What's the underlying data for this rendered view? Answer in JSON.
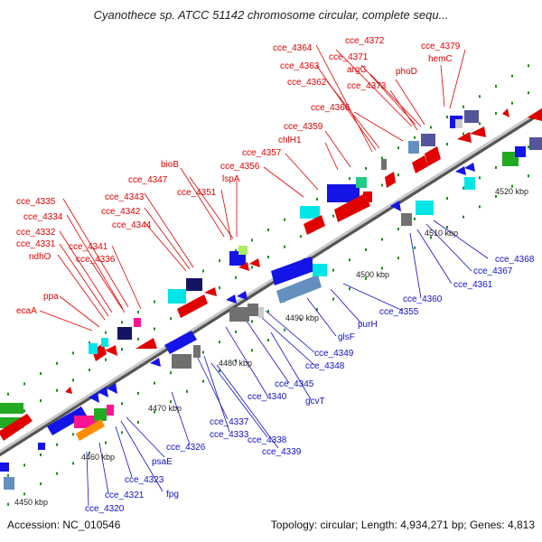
{
  "title": "Cyanothece sp. ATCC 51142 chromosome circular, complete sequ...",
  "footer": {
    "accession": "Accession: NC_010546",
    "summary": "Topology: circular; Length: 4,934,271 bp; Genes: 4,813"
  },
  "colors": {
    "forward_label": "#e00000",
    "reverse_label": "#1010c8",
    "backbone": "#9a9a9a",
    "tick_dot": "#1e8c1e",
    "gene_blue": "#1414e6",
    "gene_red": "#e00000",
    "gene_cyan": "#00e6e6",
    "gene_navy": "#141464",
    "gene_gray": "#707070",
    "gene_steel": "#6490c0",
    "gene_magenta": "#ff1493",
    "gene_green": "#22aa22",
    "gene_orange": "#ff8c00",
    "gene_lightgreen": "#aaee66",
    "gene_purple": "#555599"
  },
  "scale_ticks": [
    "4450 kbp",
    "4460 kbp",
    "4470 kbp",
    "4480 kbp",
    "4490 kbp",
    "4500 kbp",
    "4510 kbp",
    "4520 kbp"
  ],
  "forward_labels": [
    "cce_4372",
    "cce_4364",
    "cce_4371",
    "cce_4379",
    "cce_4363",
    "argG",
    "hemC",
    "cce_4362",
    "phoD",
    "cce_4373",
    "cce_4366",
    "cce_4359",
    "chlH1",
    "cce_4357",
    "bioB",
    "cce_4356",
    "lspA",
    "cce_4347",
    "cce_4351",
    "cce_4335",
    "cce_4343",
    "cce_4334",
    "cce_4342",
    "cce_4344",
    "cce_4332",
    "cce_4331",
    "cce_4341",
    "ndhO",
    "cce_4336",
    "ppa",
    "ecaA"
  ],
  "reverse_labels": [
    "cce_4368",
    "cce_4367",
    "cce_4361",
    "cce_4360",
    "cce_4355",
    "purH",
    "glsF",
    "cce_4349",
    "cce_4348",
    "cce_4345",
    "cce_4340",
    "gcvT",
    "cce_4337",
    "cce_4333",
    "cce_4338",
    "cce_4339",
    "cce_4326",
    "psaE",
    "cce_4323",
    "fpg",
    "cce_4321",
    "cce_4320"
  ]
}
